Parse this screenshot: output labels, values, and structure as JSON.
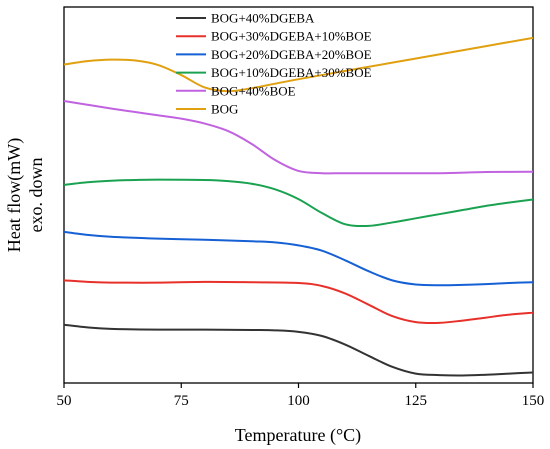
{
  "chart_data": {
    "type": "line",
    "xlabel": "Temperature (°C)",
    "ylabel_line1": "Heat flow(mW)",
    "ylabel_line2": "exo. down",
    "xlim": [
      50,
      150
    ],
    "xticks": [
      50,
      75,
      100,
      125,
      150
    ],
    "y_tick_labels_shown": false,
    "ylim": [
      0,
      100
    ],
    "grid": false,
    "legend_position": "top-left",
    "series": [
      {
        "name": "BOG+40%DGEBA",
        "color": "#333333",
        "points": [
          [
            50,
            15.5
          ],
          [
            55,
            14.8
          ],
          [
            60,
            14.4
          ],
          [
            70,
            14.2
          ],
          [
            80,
            14.2
          ],
          [
            90,
            14.1
          ],
          [
            95,
            14.0
          ],
          [
            100,
            13.6
          ],
          [
            105,
            12.5
          ],
          [
            110,
            10.2
          ],
          [
            115,
            7.2
          ],
          [
            120,
            4.3
          ],
          [
            125,
            2.5
          ],
          [
            130,
            2.1
          ],
          [
            135,
            2.0
          ],
          [
            140,
            2.2
          ],
          [
            145,
            2.5
          ],
          [
            150,
            2.8
          ]
        ]
      },
      {
        "name": "BOG+30%DGEBA+10%BOE",
        "color": "#e8302a",
        "points": [
          [
            50,
            27.3
          ],
          [
            55,
            26.9
          ],
          [
            60,
            26.7
          ],
          [
            70,
            26.7
          ],
          [
            80,
            26.9
          ],
          [
            90,
            26.8
          ],
          [
            100,
            26.6
          ],
          [
            105,
            25.8
          ],
          [
            110,
            23.8
          ],
          [
            115,
            20.8
          ],
          [
            120,
            17.8
          ],
          [
            125,
            16.2
          ],
          [
            130,
            16.0
          ],
          [
            135,
            16.6
          ],
          [
            140,
            17.4
          ],
          [
            145,
            18.2
          ],
          [
            150,
            18.7
          ]
        ]
      },
      {
        "name": "BOG+20%DGEBA+20%BOE",
        "color": "#1560d4",
        "points": [
          [
            50,
            40.2
          ],
          [
            55,
            39.4
          ],
          [
            60,
            38.9
          ],
          [
            70,
            38.4
          ],
          [
            80,
            38.1
          ],
          [
            90,
            37.7
          ],
          [
            95,
            37.4
          ],
          [
            100,
            36.6
          ],
          [
            105,
            35.2
          ],
          [
            110,
            32.6
          ],
          [
            115,
            29.7
          ],
          [
            120,
            27.3
          ],
          [
            125,
            26.2
          ],
          [
            130,
            26.0
          ],
          [
            135,
            26.1
          ],
          [
            140,
            26.3
          ],
          [
            145,
            26.6
          ],
          [
            150,
            26.8
          ]
        ]
      },
      {
        "name": "BOG+10%DGEBA+30%BOE",
        "color": "#1aa251",
        "points": [
          [
            50,
            52.7
          ],
          [
            55,
            53.4
          ],
          [
            60,
            53.8
          ],
          [
            65,
            54.0
          ],
          [
            70,
            54.1
          ],
          [
            80,
            54.0
          ],
          [
            85,
            53.7
          ],
          [
            90,
            53.0
          ],
          [
            95,
            51.5
          ],
          [
            100,
            48.9
          ],
          [
            105,
            45.2
          ],
          [
            110,
            42.2
          ],
          [
            115,
            41.8
          ],
          [
            120,
            42.7
          ],
          [
            125,
            43.8
          ],
          [
            130,
            44.9
          ],
          [
            135,
            46.0
          ],
          [
            140,
            47.1
          ],
          [
            145,
            48.0
          ],
          [
            150,
            48.8
          ]
        ]
      },
      {
        "name": "BOG+40%BOE",
        "color": "#c163e0",
        "points": [
          [
            50,
            75.0
          ],
          [
            55,
            74.0
          ],
          [
            60,
            73.0
          ],
          [
            65,
            72.1
          ],
          [
            70,
            71.2
          ],
          [
            75,
            70.3
          ],
          [
            80,
            69.0
          ],
          [
            85,
            67.0
          ],
          [
            90,
            63.6
          ],
          [
            95,
            59.3
          ],
          [
            100,
            56.4
          ],
          [
            105,
            55.8
          ],
          [
            110,
            55.8
          ],
          [
            120,
            55.8
          ],
          [
            130,
            55.8
          ],
          [
            140,
            56.1
          ],
          [
            150,
            56.2
          ]
        ]
      },
      {
        "name": "BOG",
        "color": "#e0a010",
        "points": [
          [
            50,
            84.7
          ],
          [
            55,
            85.6
          ],
          [
            60,
            86.0
          ],
          [
            65,
            85.8
          ],
          [
            70,
            84.6
          ],
          [
            75,
            81.9
          ],
          [
            80,
            78.6
          ],
          [
            85,
            77.6
          ],
          [
            90,
            78.4
          ],
          [
            95,
            79.6
          ],
          [
            100,
            80.8
          ],
          [
            110,
            83.0
          ],
          [
            120,
            85.2
          ],
          [
            130,
            87.4
          ],
          [
            140,
            89.6
          ],
          [
            150,
            91.8
          ]
        ]
      }
    ]
  }
}
